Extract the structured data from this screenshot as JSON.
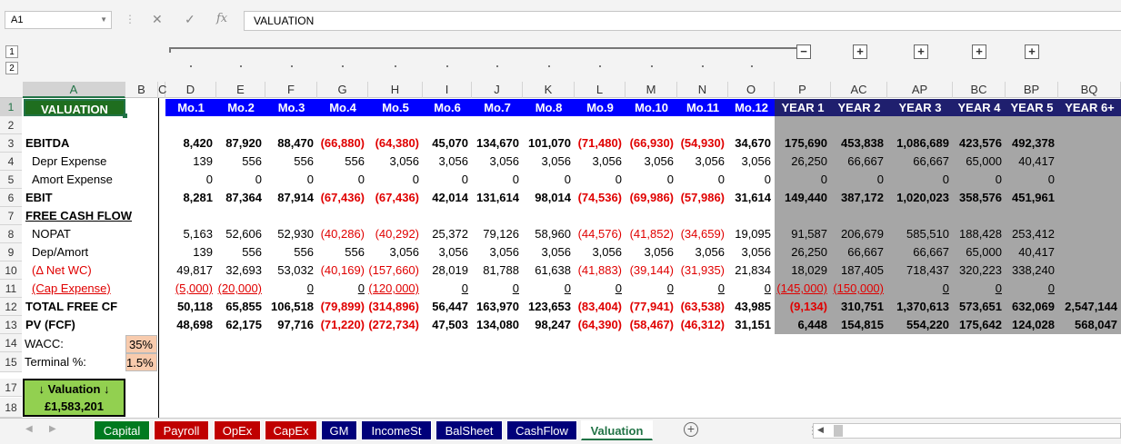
{
  "formula_bar": {
    "name_box": "A1",
    "cancel_glyph": "✕",
    "enter_glyph": "✓",
    "fx_label": "fx",
    "formula": "VALUATION"
  },
  "outline": {
    "levels": [
      "1",
      "2"
    ],
    "minus": "−",
    "plus": "+"
  },
  "columns": [
    "A",
    "B",
    "C",
    "D",
    "E",
    "F",
    "G",
    "H",
    "I",
    "J",
    "K",
    "L",
    "M",
    "N",
    "O",
    "P",
    "AC",
    "AP",
    "BC",
    "BP",
    "BQ"
  ],
  "rows": [
    "1",
    "2",
    "3",
    "4",
    "5",
    "6",
    "7",
    "8",
    "9",
    "10",
    "11",
    "12",
    "13",
    "14",
    "15",
    "17",
    "18"
  ],
  "header": {
    "title": "VALUATION",
    "months": [
      "Mo.1",
      "Mo.2",
      "Mo.3",
      "Mo.4",
      "Mo.5",
      "Mo.6",
      "Mo.7",
      "Mo.8",
      "Mo.9",
      "Mo.10",
      "Mo.11",
      "Mo.12"
    ],
    "years": [
      "YEAR 1",
      "YEAR 2",
      "YEAR 3",
      "YEAR 4",
      "YEAR 5",
      "YEAR 6+"
    ]
  },
  "table": [
    {
      "label": "EBITDA",
      "bold": true,
      "underline": false,
      "red_label": false,
      "values": [
        "8,420",
        "87,920",
        "88,470",
        "(66,880)",
        "(64,380)",
        "45,070",
        "134,670",
        "101,070",
        "(71,480)",
        "(66,930)",
        "(54,930)",
        "34,670",
        "175,690",
        "453,838",
        "1,086,689",
        "423,576",
        "492,378",
        ""
      ]
    },
    {
      "label": "Depr Expense",
      "bold": false,
      "indent": true,
      "underline": false,
      "red_label": false,
      "values": [
        "139",
        "556",
        "556",
        "556",
        "3,056",
        "3,056",
        "3,056",
        "3,056",
        "3,056",
        "3,056",
        "3,056",
        "3,056",
        "26,250",
        "66,667",
        "66,667",
        "65,000",
        "40,417",
        ""
      ]
    },
    {
      "label": "Amort Expense",
      "bold": false,
      "indent": true,
      "underline": false,
      "red_label": false,
      "values": [
        "0",
        "0",
        "0",
        "0",
        "0",
        "0",
        "0",
        "0",
        "0",
        "0",
        "0",
        "0",
        "0",
        "0",
        "0",
        "0",
        "0",
        ""
      ]
    },
    {
      "label": "EBIT",
      "bold": true,
      "underline": false,
      "red_label": false,
      "values": [
        "8,281",
        "87,364",
        "87,914",
        "(67,436)",
        "(67,436)",
        "42,014",
        "131,614",
        "98,014",
        "(74,536)",
        "(69,986)",
        "(57,986)",
        "31,614",
        "149,440",
        "387,172",
        "1,020,023",
        "358,576",
        "451,961",
        ""
      ]
    },
    {
      "label": "FREE CASH FLOW",
      "bold": true,
      "underline": true,
      "red_label": false,
      "values": [
        "",
        "",
        "",
        "",
        "",
        "",
        "",
        "",
        "",
        "",
        "",
        "",
        "",
        "",
        "",
        "",
        "",
        ""
      ]
    },
    {
      "label": "NOPAT",
      "bold": false,
      "indent": true,
      "underline": false,
      "red_label": false,
      "values": [
        "5,163",
        "52,606",
        "52,930",
        "(40,286)",
        "(40,292)",
        "25,372",
        "79,126",
        "58,960",
        "(44,576)",
        "(41,852)",
        "(34,659)",
        "19,095",
        "91,587",
        "206,679",
        "585,510",
        "188,428",
        "253,412",
        ""
      ]
    },
    {
      "label": "Dep/Amort",
      "bold": false,
      "indent": true,
      "underline": false,
      "red_label": false,
      "values": [
        "139",
        "556",
        "556",
        "556",
        "3,056",
        "3,056",
        "3,056",
        "3,056",
        "3,056",
        "3,056",
        "3,056",
        "3,056",
        "26,250",
        "66,667",
        "66,667",
        "65,000",
        "40,417",
        ""
      ]
    },
    {
      "label": "(Δ Net WC)",
      "bold": false,
      "indent": true,
      "underline": false,
      "red_label": true,
      "values": [
        "49,817",
        "32,693",
        "53,032",
        "(40,169)",
        "(157,660)",
        "28,019",
        "81,788",
        "61,638",
        "(41,883)",
        "(39,144)",
        "(31,935)",
        "21,834",
        "18,029",
        "187,405",
        "718,437",
        "320,223",
        "338,240",
        ""
      ]
    },
    {
      "label": "(Cap Expense)",
      "bold": false,
      "indent": true,
      "underline": true,
      "red_label": true,
      "underline_values": true,
      "values": [
        "(5,000)",
        "(20,000)",
        "0",
        "0",
        "(120,000)",
        "0",
        "0",
        "0",
        "0",
        "0",
        "0",
        "0",
        "(145,000)",
        "(150,000)",
        "0",
        "0",
        "0",
        ""
      ]
    },
    {
      "label": "TOTAL FREE CF",
      "bold": true,
      "underline": false,
      "red_label": false,
      "values": [
        "50,118",
        "65,855",
        "106,518",
        "(79,899)",
        "(314,896)",
        "56,447",
        "163,970",
        "123,653",
        "(83,404)",
        "(77,941)",
        "(63,538)",
        "43,985",
        "(9,134)",
        "310,751",
        "1,370,613",
        "573,651",
        "632,069",
        "2,547,144"
      ]
    },
    {
      "label": "PV (FCF)",
      "bold": true,
      "underline": false,
      "red_label": false,
      "values": [
        "48,698",
        "62,175",
        "97,716",
        "(71,220)",
        "(272,734)",
        "47,503",
        "134,080",
        "98,247",
        "(64,390)",
        "(58,467)",
        "(46,312)",
        "31,151",
        "6,448",
        "154,815",
        "554,220",
        "175,642",
        "124,028",
        "568,047"
      ]
    }
  ],
  "inputs": {
    "wacc_label": "WACC:",
    "wacc_value": "35%",
    "terminal_label": "Terminal %:",
    "terminal_value": "1.5%"
  },
  "result": {
    "label": "↓ Valuation ↓",
    "value": "£1,583,201"
  },
  "sheet_tabs": [
    {
      "label": "Capital",
      "color": "#007a1f"
    },
    {
      "label": "Payroll",
      "color": "#c00000"
    },
    {
      "label": "OpEx",
      "color": "#c00000"
    },
    {
      "label": "CapEx",
      "color": "#c00000"
    },
    {
      "label": "GM",
      "color": "#00007a"
    },
    {
      "label": "IncomeSt",
      "color": "#00007a"
    },
    {
      "label": "BalSheet",
      "color": "#00007a"
    },
    {
      "label": "CashFlow",
      "color": "#00007a"
    },
    {
      "label": "Valuation",
      "color": "#ffffff",
      "active": true
    }
  ],
  "colors": {
    "month_header": "#0000ff",
    "year_header": "#1f1f6e",
    "year_fill": "#a6a6a6",
    "title_fill": "#1f6e1f",
    "input_fill": "#f8cbad",
    "result_fill": "#92d050",
    "negative": "#e00000"
  }
}
